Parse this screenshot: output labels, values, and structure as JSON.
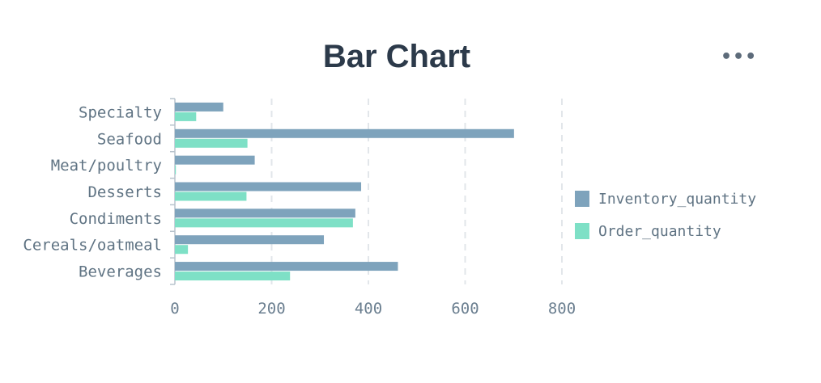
{
  "header": {
    "title": "Bar Chart",
    "menu_icon": "more-horizontal-icon",
    "menu_label": "•••"
  },
  "colors": {
    "inventory": "#7ea3bc",
    "order": "#7ee0c6",
    "grid": "#e2e6ea",
    "axis": "#b9c4cd"
  },
  "chart_data": {
    "type": "bar",
    "orientation": "horizontal",
    "title": "Bar Chart",
    "categories": [
      "Specialty",
      "Seafood",
      "Meat/poultry",
      "Desserts",
      "Condiments",
      "Cereals/oatmeal",
      "Beverages"
    ],
    "series": [
      {
        "name": "Inventory_quantity",
        "color": "#7ea3bc",
        "values": [
          100,
          701,
          165,
          385,
          373,
          308,
          461
        ]
      },
      {
        "name": "Order_quantity",
        "color": "#7ee0c6",
        "values": [
          44,
          150,
          2,
          148,
          368,
          27,
          238
        ]
      }
    ],
    "xlim": [
      0,
      800
    ],
    "xticks": [
      0,
      200,
      400,
      600,
      800
    ],
    "xlabel": "",
    "ylabel": "",
    "grid": "vertical-dashed",
    "legend_position": "right"
  }
}
